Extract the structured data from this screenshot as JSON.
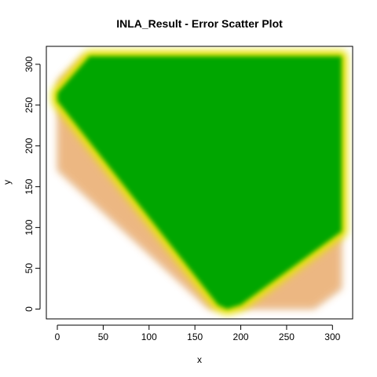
{
  "chart_data": {
    "type": "scatter",
    "title": "INLA_Result  - Error Scatter Plot",
    "xlabel": "x",
    "ylabel": "y",
    "xlim": [
      -12,
      322
    ],
    "ylim": [
      -12,
      322
    ],
    "x_ticks": [
      0,
      50,
      100,
      150,
      200,
      250,
      300
    ],
    "y_ticks": [
      0,
      50,
      100,
      150,
      200,
      250,
      300
    ],
    "grid": false,
    "legend": "none",
    "colors": {
      "low_error": "#00a600",
      "mid_error": "#e6e600",
      "high_error": "#ecb176",
      "max_error": "#f2f2f2"
    },
    "color_scale": "terrain",
    "domain_polygon": [
      [
        0,
        170
      ],
      [
        0,
        280
      ],
      [
        28,
        310
      ],
      [
        310,
        310
      ],
      [
        310,
        25
      ],
      [
        280,
        0
      ],
      [
        165,
        0
      ]
    ],
    "low_error_region": [
      [
        0,
        255
      ],
      [
        0,
        265
      ],
      [
        35,
        310
      ],
      [
        310,
        310
      ],
      [
        310,
        95
      ],
      [
        200,
        5
      ],
      [
        185,
        0
      ],
      [
        175,
        5
      ]
    ]
  }
}
